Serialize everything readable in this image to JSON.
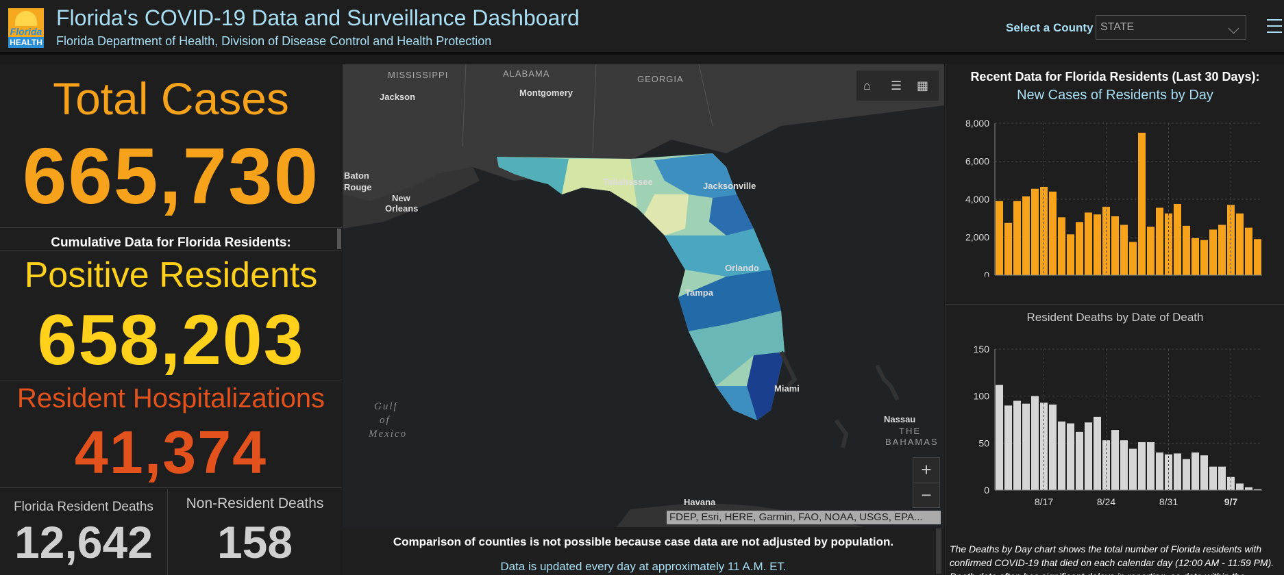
{
  "header": {
    "logo_top": "Florida",
    "logo_bottom": "HEALTH",
    "title": "Florida's COVID-19 Data and Surveillance Dashboard",
    "subtitle": "Florida Department of Health, Division of Disease Control and Health Protection",
    "county_label": "Select a County",
    "county_value": "STATE"
  },
  "left": {
    "total_cases_label": "Total Cases",
    "total_cases_value": "665,730",
    "cumulative_heading": "Cumulative Data for Florida Residents:",
    "positive_label": "Positive Residents",
    "positive_value": "658,203",
    "hosp_label": "Resident Hospitalizations",
    "hosp_value": "41,374",
    "deaths_label": "Florida Resident Deaths",
    "deaths_value": "12,642",
    "nonres_label": "Non-Resident Deaths",
    "nonres_value": "158"
  },
  "colors": {
    "orange": "#f7a21b",
    "yellow": "#ffd11a",
    "red": "#e3521c",
    "grey_value": "#d0d0d0"
  },
  "map": {
    "labels": {
      "mississippi": "MISSISSIPPI",
      "alabama": "ALABAMA",
      "georgia": "GEORGIA",
      "jackson": "Jackson",
      "montgomery": "Montgomery",
      "baton1": "Baton",
      "baton2": "Rouge",
      "neworleans1": "New",
      "neworleans2": "Orleans",
      "tallahassee": "Tallahassee",
      "jacksonville": "Jacksonville",
      "orlando": "Orlando",
      "tampa": "Tampa",
      "miami": "Miami",
      "gulf1": "Gulf",
      "gulf2": "of",
      "gulf3": "Mexico",
      "havana": "Havana",
      "nassau": "Nassau",
      "bahamas1": "THE",
      "bahamas2": "BAHAMAS"
    },
    "controls": [
      "home-icon",
      "list-icon",
      "qr-grid-icon"
    ],
    "zoom_in": "+",
    "zoom_out": "−",
    "attribution": "FDEP, Esri, HERE, Garmin, FAO, NOAA, USGS, EPA..."
  },
  "notes": {
    "comparison": "Comparison of counties is not possible because case data are not adjusted by population.",
    "update": "Data is updated every day at approximately 11 A.M. ET."
  },
  "right": {
    "recent_heading": "Recent Data for Florida Residents (Last 30 Days):",
    "deaths_note": "The Deaths by Day chart shows the total number of Florida residents with confirmed COVID-19 that died on each calendar day (12:00 AM - 11:59 PM). Death data often has significant delays in reporting, so data within the"
  },
  "chart_data": [
    {
      "type": "bar",
      "title": "New Cases of Residents by Day",
      "categories": [
        "8/12",
        "8/13",
        "8/14",
        "8/15",
        "8/16",
        "8/17",
        "8/18",
        "8/19",
        "8/20",
        "8/21",
        "8/22",
        "8/23",
        "8/24",
        "8/25",
        "8/26",
        "8/27",
        "8/28",
        "8/29",
        "8/30",
        "8/31",
        "9/1",
        "9/2",
        "9/3",
        "9/4",
        "9/5",
        "9/6",
        "9/7",
        "9/8",
        "9/9",
        "9/10"
      ],
      "values": [
        3900,
        2750,
        3900,
        4150,
        4550,
        4650,
        4400,
        3050,
        2150,
        2800,
        3300,
        3200,
        3600,
        3100,
        2650,
        1750,
        7500,
        2550,
        3550,
        3250,
        3750,
        2600,
        1950,
        1850,
        2400,
        2650,
        3700,
        3250,
        2500,
        1900
      ],
      "tick_labels": [
        "8/17",
        "8/24",
        "8/31",
        "9/7"
      ],
      "y_ticks": [
        "0",
        "2,000",
        "4,000",
        "6,000",
        "8,000"
      ],
      "ylim": [
        0,
        8000
      ],
      "color": "#f7a21b",
      "grid": true
    },
    {
      "type": "bar",
      "title": "Resident Deaths by Date of Death",
      "categories": [
        "8/12",
        "8/13",
        "8/14",
        "8/15",
        "8/16",
        "8/17",
        "8/18",
        "8/19",
        "8/20",
        "8/21",
        "8/22",
        "8/23",
        "8/24",
        "8/25",
        "8/26",
        "8/27",
        "8/28",
        "8/29",
        "8/30",
        "8/31",
        "9/1",
        "9/2",
        "9/3",
        "9/4",
        "9/5",
        "9/6",
        "9/7",
        "9/8",
        "9/9",
        "9/10"
      ],
      "values": [
        112,
        90,
        95,
        92,
        100,
        93,
        91,
        73,
        71,
        62,
        72,
        78,
        53,
        64,
        53,
        44,
        51,
        51,
        40,
        38,
        39,
        33,
        40,
        37,
        25,
        25,
        14,
        7,
        3,
        1
      ],
      "tick_labels": [
        "8/17",
        "8/24",
        "8/31",
        "9/7"
      ],
      "y_ticks": [
        "0",
        "50",
        "100",
        "150"
      ],
      "ylim": [
        0,
        150
      ],
      "color": "#d6d6d6",
      "grid": true
    }
  ]
}
